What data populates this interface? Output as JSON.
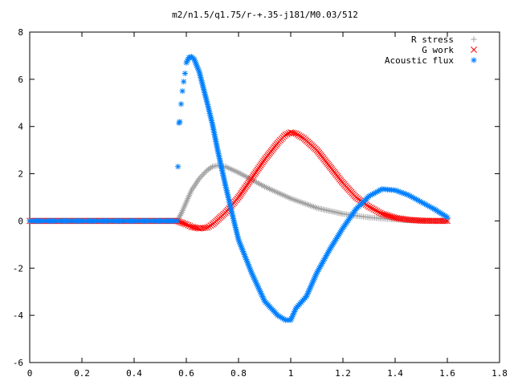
{
  "chart_data": {
    "type": "scatter",
    "title": "m2/n1.5/q1.75/r-+.35-j181/M0.03/512",
    "xlabel": "",
    "ylabel": "",
    "xlim": [
      0,
      1.8
    ],
    "ylim": [
      -6,
      8
    ],
    "xticks": [
      "0",
      "0.2",
      "0.4",
      "0.6",
      "0.8",
      "1",
      "1.2",
      "1.4",
      "1.6",
      "1.8"
    ],
    "yticks": [
      "-6",
      "-4",
      "-2",
      "0",
      "2",
      "4",
      "6",
      "8"
    ],
    "grid": false,
    "legend_position": "top-right",
    "series": [
      {
        "name": "R stress",
        "marker": "+",
        "color": "#a0a0a0",
        "points": [
          [
            0,
            0
          ],
          [
            0.1,
            0
          ],
          [
            0.2,
            0
          ],
          [
            0.3,
            0
          ],
          [
            0.4,
            0
          ],
          [
            0.5,
            0
          ],
          [
            0.565,
            0
          ],
          [
            0.58,
            0.3
          ],
          [
            0.6,
            0.8
          ],
          [
            0.62,
            1.3
          ],
          [
            0.65,
            1.8
          ],
          [
            0.68,
            2.15
          ],
          [
            0.7,
            2.3
          ],
          [
            0.72,
            2.35
          ],
          [
            0.75,
            2.3
          ],
          [
            0.8,
            2.05
          ],
          [
            0.85,
            1.75
          ],
          [
            0.9,
            1.45
          ],
          [
            0.95,
            1.2
          ],
          [
            1.0,
            0.95
          ],
          [
            1.05,
            0.75
          ],
          [
            1.1,
            0.55
          ],
          [
            1.15,
            0.42
          ],
          [
            1.2,
            0.3
          ],
          [
            1.25,
            0.22
          ],
          [
            1.3,
            0.15
          ],
          [
            1.35,
            0.1
          ],
          [
            1.4,
            0.06
          ],
          [
            1.45,
            0.03
          ],
          [
            1.5,
            0.01
          ],
          [
            1.6,
            0
          ]
        ]
      },
      {
        "name": "G work",
        "marker": "x",
        "color": "#ff0000",
        "points": [
          [
            0,
            0
          ],
          [
            0.1,
            0
          ],
          [
            0.2,
            0
          ],
          [
            0.3,
            0
          ],
          [
            0.4,
            0
          ],
          [
            0.5,
            0
          ],
          [
            0.565,
            0
          ],
          [
            0.6,
            -0.15
          ],
          [
            0.62,
            -0.25
          ],
          [
            0.65,
            -0.32
          ],
          [
            0.68,
            -0.28
          ],
          [
            0.7,
            -0.15
          ],
          [
            0.72,
            0.05
          ],
          [
            0.75,
            0.35
          ],
          [
            0.8,
            1.0
          ],
          [
            0.85,
            1.8
          ],
          [
            0.9,
            2.6
          ],
          [
            0.95,
            3.3
          ],
          [
            0.98,
            3.65
          ],
          [
            1.0,
            3.75
          ],
          [
            1.02,
            3.7
          ],
          [
            1.05,
            3.5
          ],
          [
            1.1,
            3.0
          ],
          [
            1.15,
            2.3
          ],
          [
            1.2,
            1.6
          ],
          [
            1.25,
            1.0
          ],
          [
            1.3,
            0.6
          ],
          [
            1.35,
            0.3
          ],
          [
            1.4,
            0.13
          ],
          [
            1.45,
            0.05
          ],
          [
            1.5,
            0.01
          ],
          [
            1.55,
            0
          ],
          [
            1.6,
            0
          ]
        ]
      },
      {
        "name": "Acoustic flux",
        "marker": "*",
        "color": "#0080ff",
        "points": [
          [
            0,
            0
          ],
          [
            0.1,
            0
          ],
          [
            0.2,
            0
          ],
          [
            0.3,
            0
          ],
          [
            0.4,
            0
          ],
          [
            0.5,
            0
          ],
          [
            0.565,
            0
          ],
          [
            0.568,
            2.3
          ],
          [
            0.572,
            4.15
          ],
          [
            0.575,
            4.2
          ],
          [
            0.58,
            4.95
          ],
          [
            0.585,
            5.5
          ],
          [
            0.59,
            5.9
          ],
          [
            0.595,
            6.25
          ],
          [
            0.6,
            6.7
          ],
          [
            0.61,
            6.92
          ],
          [
            0.62,
            6.95
          ],
          [
            0.63,
            6.85
          ],
          [
            0.65,
            6.3
          ],
          [
            0.68,
            5.0
          ],
          [
            0.7,
            4.1
          ],
          [
            0.72,
            3.0
          ],
          [
            0.75,
            1.5
          ],
          [
            0.78,
            0.1
          ],
          [
            0.8,
            -0.8
          ],
          [
            0.85,
            -2.2
          ],
          [
            0.9,
            -3.4
          ],
          [
            0.95,
            -4.0
          ],
          [
            0.98,
            -4.2
          ],
          [
            1.0,
            -4.2
          ],
          [
            1.02,
            -3.7
          ],
          [
            1.04,
            -3.45
          ],
          [
            1.06,
            -3.2
          ],
          [
            1.1,
            -2.2
          ],
          [
            1.15,
            -1.2
          ],
          [
            1.2,
            -0.3
          ],
          [
            1.25,
            0.5
          ],
          [
            1.3,
            1.05
          ],
          [
            1.35,
            1.35
          ],
          [
            1.4,
            1.3
          ],
          [
            1.45,
            1.1
          ],
          [
            1.5,
            0.8
          ],
          [
            1.55,
            0.5
          ],
          [
            1.6,
            0.15
          ]
        ]
      }
    ]
  }
}
